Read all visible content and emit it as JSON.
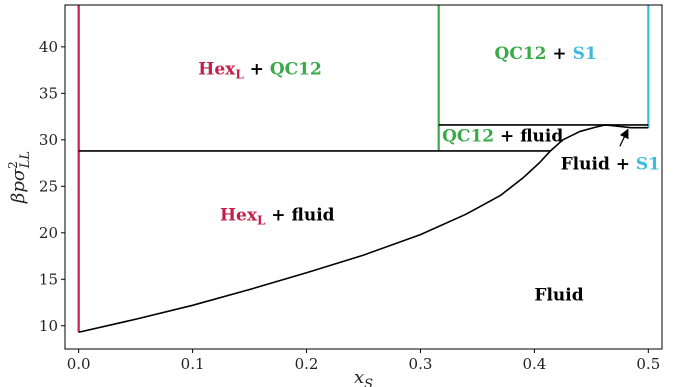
{
  "chart_data": {
    "type": "line",
    "title": "",
    "xlabel": "x_S",
    "ylabel": "βpσ²_LL",
    "xlim": [
      -0.012,
      0.512
    ],
    "ylim": [
      7.5,
      44.5
    ],
    "grid": false,
    "x_ticks": [
      0.0,
      0.1,
      0.2,
      0.3,
      0.4,
      0.5
    ],
    "x_tick_labels": [
      "0.0",
      "0.1",
      "0.2",
      "0.3",
      "0.4",
      "0.5"
    ],
    "y_ticks": [
      10,
      15,
      20,
      25,
      30,
      35,
      40
    ],
    "y_tick_labels": [
      "10",
      "15",
      "20",
      "25",
      "30",
      "35",
      "40"
    ],
    "colors": {
      "hex": "#c41e4a",
      "qc12": "#3aaa48",
      "s1": "#3cbcdc",
      "fluid": "#000000"
    },
    "lines": [
      {
        "id": "hex-boundary",
        "color_key": "hex",
        "x": [
          0.0,
          0.0
        ],
        "y": [
          9.3,
          44.5
        ]
      },
      {
        "id": "qc12-boundary",
        "color_key": "qc12",
        "x": [
          0.316,
          0.316
        ],
        "y": [
          28.8,
          44.5
        ]
      },
      {
        "id": "s1-boundary",
        "color_key": "s1",
        "x": [
          0.5,
          0.5
        ],
        "y": [
          31.3,
          44.5
        ]
      },
      {
        "id": "hex-fluid-coexistence",
        "color_key": "fluid",
        "x": [
          0.0,
          0.414
        ],
        "y": [
          28.8,
          28.8
        ]
      },
      {
        "id": "qc12-fluid-coexistence",
        "color_key": "fluid",
        "x": [
          0.316,
          0.5
        ],
        "y": [
          31.6,
          31.6
        ]
      },
      {
        "id": "fluid-boundary",
        "color_key": "fluid",
        "x": [
          0.0,
          0.05,
          0.1,
          0.15,
          0.2,
          0.25,
          0.3,
          0.34,
          0.37,
          0.39,
          0.405,
          0.414,
          0.425,
          0.44,
          0.455,
          0.462,
          0.47,
          0.485,
          0.5
        ],
        "y": [
          9.3,
          10.7,
          12.2,
          13.9,
          15.7,
          17.6,
          19.8,
          22.0,
          24.0,
          25.9,
          27.6,
          28.8,
          30.0,
          30.9,
          31.4,
          31.6,
          31.5,
          31.3,
          31.3
        ]
      }
    ],
    "regions": [
      {
        "parts": [
          {
            "text": "Hex",
            "color_key": "hex"
          },
          {
            "text": "L",
            "color_key": "hex",
            "sub": true
          },
          {
            "text": " + ",
            "color_key": "fluid"
          },
          {
            "text": "QC12",
            "color_key": "qc12"
          }
        ],
        "x": 0.105,
        "y": 37.0
      },
      {
        "parts": [
          {
            "text": "QC12",
            "color_key": "qc12"
          },
          {
            "text": " + ",
            "color_key": "fluid"
          },
          {
            "text": "S1",
            "color_key": "s1"
          }
        ],
        "x": 0.365,
        "y": 38.7
      },
      {
        "parts": [
          {
            "text": "QC12",
            "color_key": "qc12"
          },
          {
            "text": " + fluid",
            "color_key": "fluid"
          }
        ],
        "x": 0.319,
        "y": 29.8
      },
      {
        "parts": [
          {
            "text": "Fluid + ",
            "color_key": "fluid"
          },
          {
            "text": "S1",
            "color_key": "s1"
          }
        ],
        "x": 0.423,
        "y": 26.8
      },
      {
        "parts": [
          {
            "text": "Hex",
            "color_key": "hex"
          },
          {
            "text": "L",
            "color_key": "hex",
            "sub": true
          },
          {
            "text": " + fluid",
            "color_key": "fluid"
          }
        ],
        "x": 0.124,
        "y": 21.3
      },
      {
        "parts": [
          {
            "text": "Fluid",
            "color_key": "fluid"
          }
        ],
        "x": 0.4,
        "y": 12.7
      }
    ],
    "arrow": {
      "from": [
        0.475,
        29.3
      ],
      "to": [
        0.482,
        31.1
      ]
    }
  }
}
